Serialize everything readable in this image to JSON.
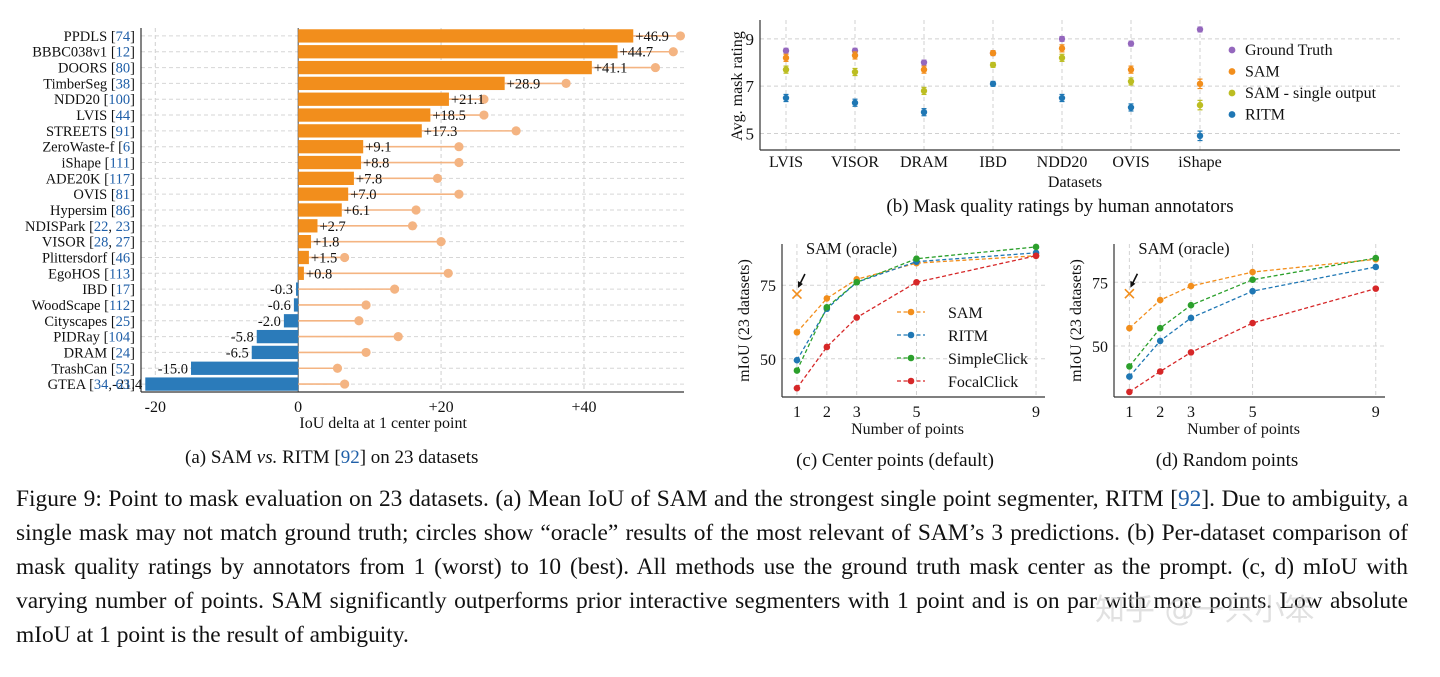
{
  "chart_data": [
    {
      "id": "a",
      "type": "bar",
      "orientation": "horizontal",
      "xlabel": "IoU delta at 1 center point",
      "xlim": [
        -22,
        54
      ],
      "xticks": [
        -20,
        0,
        20,
        40
      ],
      "xtick_labels": [
        "-20",
        "0",
        "+20",
        "+40"
      ],
      "grid": true,
      "positive_color": "#f28e1c",
      "negative_color": "#2b7bba",
      "oracle_color": "#f4b482",
      "categories": [
        {
          "name": "PPDLS",
          "refs": [
            "74"
          ]
        },
        {
          "name": "BBBC038v1",
          "refs": [
            "12"
          ]
        },
        {
          "name": "DOORS",
          "refs": [
            "80"
          ]
        },
        {
          "name": "TimberSeg",
          "refs": [
            "38"
          ]
        },
        {
          "name": "NDD20",
          "refs": [
            "100"
          ]
        },
        {
          "name": "LVIS",
          "refs": [
            "44"
          ]
        },
        {
          "name": "STREETS",
          "refs": [
            "91"
          ]
        },
        {
          "name": "ZeroWaste-f",
          "refs": [
            "6"
          ]
        },
        {
          "name": "iShape",
          "refs": [
            "111"
          ]
        },
        {
          "name": "ADE20K",
          "refs": [
            "117"
          ]
        },
        {
          "name": "OVIS",
          "refs": [
            "81"
          ]
        },
        {
          "name": "Hypersim",
          "refs": [
            "86"
          ]
        },
        {
          "name": "NDISPark",
          "refs": [
            "22",
            "23"
          ]
        },
        {
          "name": "VISOR",
          "refs": [
            "28",
            "27"
          ]
        },
        {
          "name": "Plittersdorf",
          "refs": [
            "46"
          ]
        },
        {
          "name": "EgoHOS",
          "refs": [
            "113"
          ]
        },
        {
          "name": "IBD",
          "refs": [
            "17"
          ]
        },
        {
          "name": "WoodScape",
          "refs": [
            "112"
          ]
        },
        {
          "name": "Cityscapes",
          "refs": [
            "25"
          ]
        },
        {
          "name": "PIDRay",
          "refs": [
            "104"
          ]
        },
        {
          "name": "DRAM",
          "refs": [
            "24"
          ]
        },
        {
          "name": "TrashCan",
          "refs": [
            "52"
          ]
        },
        {
          "name": "GTEA",
          "refs": [
            "34",
            "63"
          ]
        }
      ],
      "values": [
        46.9,
        44.7,
        41.1,
        28.9,
        21.1,
        18.5,
        17.3,
        9.1,
        8.8,
        7.8,
        7.0,
        6.1,
        2.7,
        1.8,
        1.5,
        0.8,
        -0.3,
        -0.6,
        -2.0,
        -5.8,
        -6.5,
        -15.0,
        -21.4
      ],
      "value_labels": [
        "+46.9",
        "+44.7",
        "+41.1",
        "+28.9",
        "+21.1",
        "+18.5",
        "+17.3",
        "+9.1",
        "+8.8",
        "+7.8",
        "+7.0",
        "+6.1",
        "+2.7",
        "+1.8",
        "+1.5",
        "+0.8",
        "-0.3",
        "-0.6",
        "-2.0",
        "-5.8",
        "-6.5",
        "-15.0",
        "-21.4"
      ],
      "oracle_values": [
        53.5,
        52.5,
        50.0,
        37.5,
        26.0,
        26.0,
        30.5,
        22.5,
        22.5,
        19.5,
        22.5,
        16.5,
        16.0,
        20.0,
        6.5,
        21.0,
        13.5,
        9.5,
        8.5,
        14.0,
        9.5,
        5.5,
        6.5
      ]
    },
    {
      "id": "b",
      "type": "scatter",
      "ylabel": "Avg. mask rating",
      "xlabel": "Datasets",
      "ylim": [
        4.3,
        9.8
      ],
      "yticks": [
        5,
        7,
        9
      ],
      "grid": true,
      "legend_position": "right",
      "categories": [
        "LVIS",
        "VISOR",
        "DRAM",
        "IBD",
        "NDD20",
        "OVIS",
        "iShape"
      ],
      "series": [
        {
          "name": "Ground Truth",
          "color": "#9467bd",
          "values": [
            8.5,
            8.5,
            8.0,
            8.4,
            9.0,
            8.8,
            9.4
          ],
          "err": [
            0.1,
            0.1,
            0.1,
            0.1,
            0.1,
            0.1,
            0.1
          ]
        },
        {
          "name": "SAM",
          "color": "#f28e1c",
          "values": [
            8.2,
            8.3,
            7.7,
            8.4,
            8.6,
            7.7,
            7.1
          ],
          "err": [
            0.15,
            0.15,
            0.15,
            0.1,
            0.15,
            0.15,
            0.2
          ]
        },
        {
          "name": "SAM - single output",
          "color": "#bcbd22",
          "values": [
            7.7,
            7.6,
            6.8,
            7.9,
            8.2,
            7.2,
            6.2
          ],
          "err": [
            0.15,
            0.15,
            0.15,
            0.1,
            0.15,
            0.15,
            0.2
          ]
        },
        {
          "name": "RITM",
          "color": "#1f77b4",
          "values": [
            6.5,
            6.3,
            5.9,
            7.1,
            6.5,
            6.1,
            4.9
          ],
          "err": [
            0.15,
            0.15,
            0.15,
            0.1,
            0.15,
            0.15,
            0.2
          ]
        }
      ],
      "caption": "(b) Mask quality ratings by human annotators"
    },
    {
      "id": "c",
      "type": "line",
      "xlabel": "Number of points",
      "ylabel": "mIoU (23 datasets)",
      "x": [
        1,
        2,
        3,
        5,
        9
      ],
      "xlim": [
        0.5,
        9.3
      ],
      "ylim": [
        37,
        89
      ],
      "yticks": [
        50,
        75
      ],
      "grid": true,
      "annotation": {
        "text": "SAM (oracle)",
        "x": 1,
        "y": 72
      },
      "series": [
        {
          "name": "SAM",
          "color": "#f28e1c",
          "values": [
            59,
            70.5,
            77,
            82.5,
            85
          ]
        },
        {
          "name": "RITM",
          "color": "#1f77b4",
          "values": [
            49.5,
            67,
            76,
            83,
            86
          ]
        },
        {
          "name": "SimpleClick",
          "color": "#2ca02c",
          "values": [
            46,
            67.5,
            76,
            84,
            88
          ]
        },
        {
          "name": "FocalClick",
          "color": "#d62728",
          "values": [
            40,
            54,
            64,
            76,
            85
          ]
        }
      ],
      "caption": "(c) Center points (default)"
    },
    {
      "id": "d",
      "type": "line",
      "xlabel": "Number of points",
      "ylabel": "mIoU (23 datasets)",
      "x": [
        1,
        2,
        3,
        5,
        9
      ],
      "xlim": [
        0.5,
        9.3
      ],
      "ylim": [
        30,
        90
      ],
      "yticks": [
        50,
        75
      ],
      "grid": true,
      "annotation": {
        "text": "SAM (oracle)",
        "x": 1,
        "y": 70.5
      },
      "series": [
        {
          "name": "SAM",
          "color": "#f28e1c",
          "values": [
            57,
            68,
            73.5,
            79,
            84
          ]
        },
        {
          "name": "RITM",
          "color": "#1f77b4",
          "values": [
            38,
            52,
            61,
            71.5,
            81
          ]
        },
        {
          "name": "SimpleClick",
          "color": "#2ca02c",
          "values": [
            42,
            57,
            66,
            76,
            84.5
          ]
        },
        {
          "name": "FocalClick",
          "color": "#d62728",
          "values": [
            32,
            40,
            47.5,
            59,
            72.5
          ]
        }
      ],
      "caption": "(d) Random points"
    }
  ],
  "subcaptions": {
    "a_prefix": "(a) SAM ",
    "a_vs": "vs.",
    "a_mid": " RITM [",
    "a_ref": "92",
    "a_suffix": "] on 23 datasets"
  },
  "caption": {
    "part1": "Figure 9: Point to mask evaluation on 23 datasets. (a) Mean IoU of SAM and the strongest single point segmenter, RITM [",
    "ref": "92",
    "part2": "]. Due to ambiguity, a single mask may not match ground truth; circles show “oracle” results of the most relevant of SAM’s 3 predictions. (b) Per-dataset comparison of mask quality ratings by annotators from 1 (worst) to 10 (best). All methods use the ground truth mask center as the prompt. (c, d) mIoU with varying number of points. SAM significantly outperforms prior interactive segmenters with 1 point and is on par with more points. Low absolute mIoU at 1 point is the result of ambiguity."
  },
  "watermark": "知乎 @一只小笨"
}
